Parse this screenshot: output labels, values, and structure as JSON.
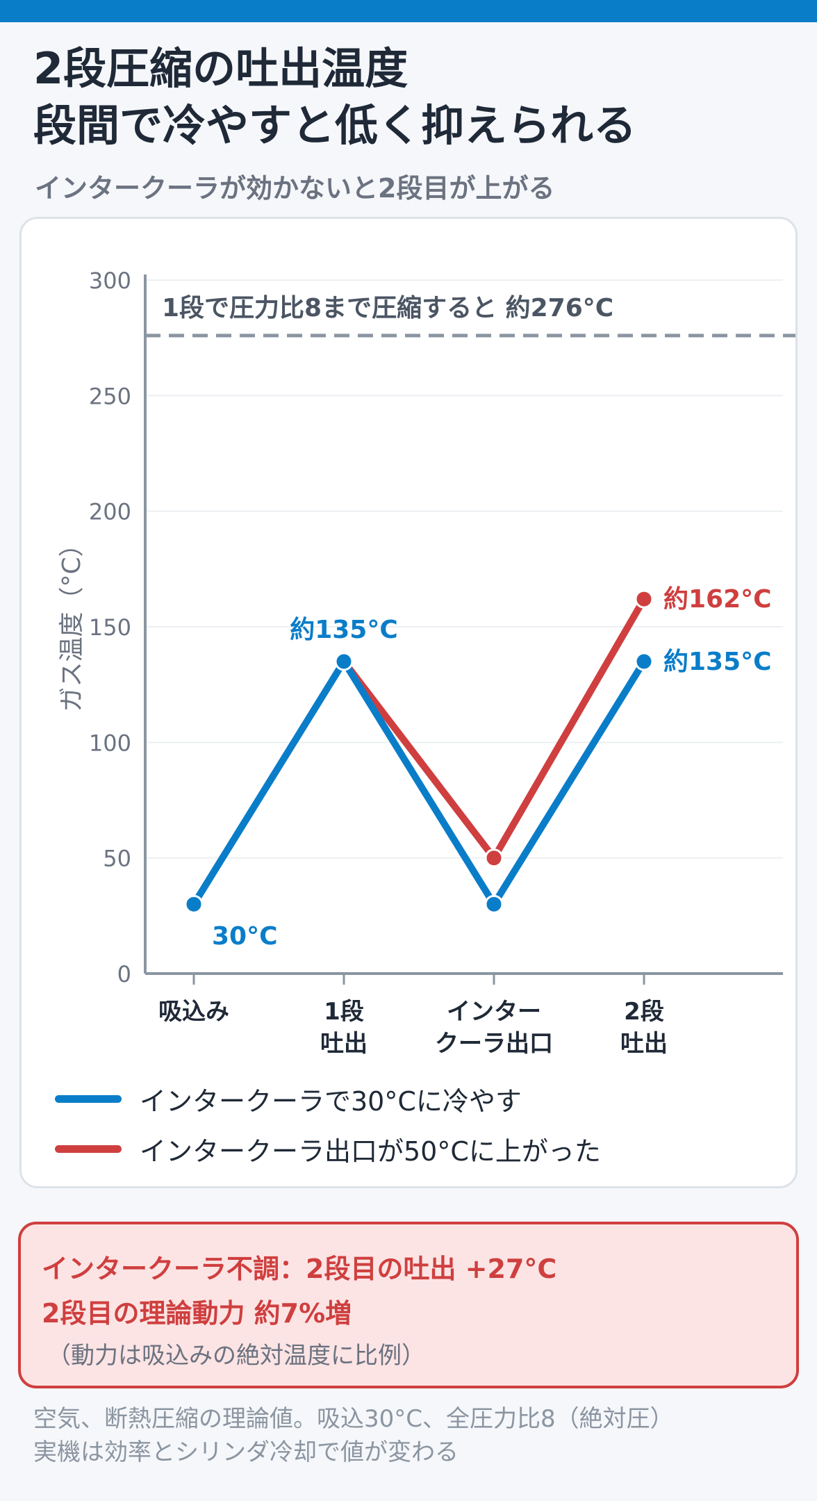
{
  "header": {
    "title_line1": "2段圧縮の吐出温度",
    "title_line2": "段間で冷やすと低く抑えられる",
    "subtitle": "インタークーラが効かないと2段目が上がる"
  },
  "colors": {
    "accent_bar": "#0a7dc9",
    "blue": "#0a7dc9",
    "red": "#cf3f3f",
    "reference": "#8b95a1"
  },
  "chart_data": {
    "type": "line",
    "ylabel": "ガス温度（°C）",
    "xlabel": "",
    "ylim": [
      0,
      300
    ],
    "yticks": [
      0,
      50,
      100,
      150,
      200,
      250,
      300
    ],
    "grid": true,
    "categories": [
      [
        "吸込み"
      ],
      [
        "1段",
        "吐出"
      ],
      [
        "インター",
        "クーラ出口"
      ],
      [
        "2段",
        "吐出"
      ]
    ],
    "series": [
      {
        "name": "インタークーラで30°Cに冷やす",
        "color": "#0a7dc9",
        "values": [
          30,
          135,
          30,
          135
        ],
        "point_labels": [
          "30°C",
          "約135°C",
          "",
          "約135°C"
        ]
      },
      {
        "name": "インタークーラ出口が50°Cに上がった",
        "color": "#cf3f3f",
        "start_index": 1,
        "values": [
          null,
          135,
          50,
          162
        ],
        "point_labels": [
          "",
          "",
          "",
          "約162°C"
        ]
      }
    ],
    "reference_line": {
      "value": 276,
      "label": "1段で圧力比8まで圧縮すると 約276°C"
    },
    "legend_position": "bottom"
  },
  "alert": {
    "line1": "インタークーラ不調：2段目の吐出 +27°C",
    "line2": "2段目の理論動力 約7%増",
    "note": "（動力は吸込みの絶対温度に比例）"
  },
  "footnote": {
    "line1": "空気、断熱圧縮の理論値。吸込30°C、全圧力比8（絶対圧）",
    "line2": "実機は効率とシリンダ冷却で値が変わる"
  }
}
